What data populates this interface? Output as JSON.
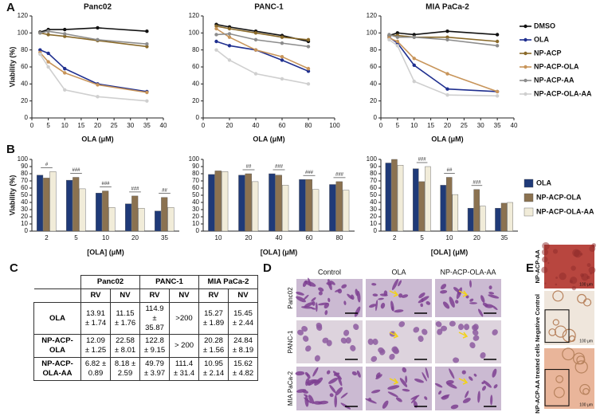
{
  "panel_labels": [
    "A",
    "B",
    "C",
    "D",
    "E"
  ],
  "chart_data": [
    {
      "type": "line",
      "title": "Panc02",
      "xlabel": "OLA (μM)",
      "ylabel": "Viability (%)",
      "x": [
        2.5,
        5,
        10,
        20,
        35
      ],
      "xlim": [
        0,
        40
      ],
      "xticks": [
        0,
        5,
        10,
        15,
        20,
        25,
        30,
        35,
        40
      ],
      "ylim": [
        0,
        120
      ],
      "yticks": [
        0,
        20,
        40,
        60,
        80,
        100,
        120
      ],
      "series": [
        {
          "color": "#111111",
          "values": [
            101,
            104,
            104,
            106,
            102
          ]
        },
        {
          "color": "#1f2f8f",
          "values": [
            80,
            76,
            58,
            40,
            31
          ]
        },
        {
          "color": "#8a6a2a",
          "values": [
            100,
            98,
            96,
            91,
            84
          ]
        },
        {
          "color": "#c8955a",
          "values": [
            77,
            66,
            53,
            39,
            30
          ]
        },
        {
          "color": "#8c8c8c",
          "values": [
            100,
            102,
            99,
            92,
            87
          ]
        },
        {
          "color": "#cfcfcf",
          "values": [
            75,
            60,
            33,
            25,
            20
          ]
        }
      ]
    },
    {
      "type": "line",
      "title": "PANC-1",
      "xlabel": "OLA (μM)",
      "x": [
        10,
        20,
        40,
        60,
        80
      ],
      "xlim": [
        0,
        100
      ],
      "xticks": [
        0,
        20,
        40,
        60,
        80,
        100
      ],
      "ylim": [
        0,
        120
      ],
      "yticks": [
        0,
        20,
        40,
        60,
        80,
        100,
        120
      ],
      "series": [
        {
          "color": "#111111",
          "values": [
            110,
            107,
            102,
            97,
            90
          ]
        },
        {
          "color": "#1f2f8f",
          "values": [
            90,
            85,
            80,
            68,
            55
          ]
        },
        {
          "color": "#8a6a2a",
          "values": [
            108,
            105,
            100,
            95,
            92
          ]
        },
        {
          "color": "#c8955a",
          "values": [
            105,
            95,
            80,
            72,
            58
          ]
        },
        {
          "color": "#8c8c8c",
          "values": [
            98,
            99,
            92,
            88,
            84
          ]
        },
        {
          "color": "#cfcfcf",
          "values": [
            80,
            68,
            52,
            46,
            40
          ]
        }
      ]
    },
    {
      "type": "line",
      "title": "MIA PaCa-2",
      "xlabel": "OLA (μM)",
      "legend": "right",
      "x": [
        2.5,
        5,
        10,
        20,
        35
      ],
      "xlim": [
        0,
        40
      ],
      "xticks": [
        0,
        5,
        10,
        15,
        20,
        25,
        30,
        35,
        40
      ],
      "ylim": [
        0,
        120
      ],
      "yticks": [
        0,
        20,
        40,
        60,
        80,
        100,
        120
      ],
      "series": [
        {
          "name": "DMSO",
          "color": "#111111",
          "values": [
            97,
            100,
            98,
            102,
            98
          ]
        },
        {
          "name": "OLA",
          "color": "#1f2f8f",
          "values": [
            95,
            88,
            62,
            34,
            31
          ]
        },
        {
          "name": "NP-ACP",
          "color": "#8a6a2a",
          "values": [
            97,
            97,
            95,
            95,
            90
          ]
        },
        {
          "name": "NP-ACP-OLA",
          "color": "#c8955a",
          "values": [
            94,
            90,
            70,
            52,
            31
          ]
        },
        {
          "name": "NP-ACP-AA",
          "color": "#8c8c8c",
          "values": [
            98,
            95,
            95,
            92,
            85
          ]
        },
        {
          "name": "NP-ACP-OLA-AA",
          "color": "#cfcfcf",
          "values": [
            92,
            85,
            43,
            27,
            26
          ]
        }
      ]
    },
    {
      "type": "bar",
      "xlabel": "[OLA] (μM)",
      "ylabel": "Viability (%)",
      "categories": [
        "2",
        "5",
        "10",
        "20",
        "35"
      ],
      "annotations": [
        "#",
        "###",
        "###",
        "###",
        "##"
      ],
      "ylim": [
        0,
        100
      ],
      "yticks": [
        0,
        10,
        20,
        30,
        40,
        50,
        60,
        70,
        80,
        90,
        100
      ],
      "series": [
        {
          "color": "#1f3a78",
          "values": [
            78,
            71,
            53,
            38,
            28
          ]
        },
        {
          "color": "#8b7250",
          "values": [
            74,
            75,
            56,
            49,
            47
          ]
        },
        {
          "color": "#f1ecd9",
          "values": [
            83,
            59,
            33,
            32,
            33
          ]
        }
      ]
    },
    {
      "type": "bar",
      "xlabel": "[OLA] (μM)",
      "categories": [
        "10",
        "20",
        "40",
        "60",
        "80"
      ],
      "annotations": [
        null,
        "##",
        "###",
        "###",
        "###"
      ],
      "ylim": [
        0,
        100
      ],
      "yticks": [
        0,
        10,
        20,
        30,
        40,
        50,
        60,
        70,
        80,
        90,
        100
      ],
      "series": [
        {
          "color": "#1f3a78",
          "values": [
            79,
            78,
            80,
            72,
            65
          ]
        },
        {
          "color": "#8b7250",
          "values": [
            84,
            80,
            78,
            72,
            69
          ]
        },
        {
          "color": "#f1ecd9",
          "values": [
            83,
            69,
            64,
            58,
            57
          ]
        }
      ]
    },
    {
      "type": "bar",
      "xlabel": "[OLA] (μM)",
      "legend": "right",
      "categories": [
        "2",
        "5",
        "10",
        "20",
        "35"
      ],
      "annotations": [
        null,
        "###",
        "##",
        "###",
        null
      ],
      "ylim": [
        0,
        100
      ],
      "yticks": [
        0,
        10,
        20,
        30,
        40,
        50,
        60,
        70,
        80,
        90,
        100
      ],
      "series": [
        {
          "name": "OLA",
          "color": "#1f3a78",
          "values": [
            95,
            87,
            64,
            32,
            32
          ]
        },
        {
          "name": "NP-ACP-OLA",
          "color": "#8b7250",
          "values": [
            100,
            69,
            75,
            58,
            39
          ]
        },
        {
          "name": "NP-ACP-OLA-AA",
          "color": "#f1ecd9",
          "values": [
            92,
            90,
            51,
            35,
            40
          ]
        }
      ]
    }
  ],
  "table": {
    "groups": [
      "Panc02",
      "PANC-1",
      "MIA PaCa-2"
    ],
    "subheaders": [
      "RV",
      "NV",
      "RV",
      "NV",
      "RV",
      "NV"
    ],
    "rows": [
      {
        "label": "OLA",
        "cells": [
          "13.91 ± 1.74",
          "11.15 ± 1.76",
          "114.9 ± 35.87",
          ">200",
          "15.27 ± 1.89",
          "15.45 ± 2.44"
        ]
      },
      {
        "label": "NP-ACP-OLA",
        "cells": [
          "12.09 ± 1.25",
          "22.58 ± 8.01",
          "122.8 ± 9.15",
          "> 200",
          "20.28 ± 1.56",
          "24.84 ± 8.19"
        ]
      },
      {
        "label": "NP-ACP-OLA-AA",
        "cells": [
          "6.82 ± 0.89",
          "8.18 ± 2.59",
          "49.79 ± 3.97",
          "111.4 ± 31.4",
          "10.95 ± 2.14",
          "15.62 ± 4.82"
        ]
      }
    ]
  },
  "micrographs": {
    "columns": [
      "Control",
      "OLA",
      "NP-ACP-OLA-AA"
    ],
    "rows": [
      "Panc02",
      "PANC-1",
      "MIA PaCa-2"
    ]
  },
  "panel_e": {
    "labels": [
      "NP-ACP-AA",
      "Negative Control",
      "NP-ACP-AA treated cells"
    ],
    "scale_labels": [
      "100 μm",
      "100 μm",
      "100 μm"
    ]
  }
}
